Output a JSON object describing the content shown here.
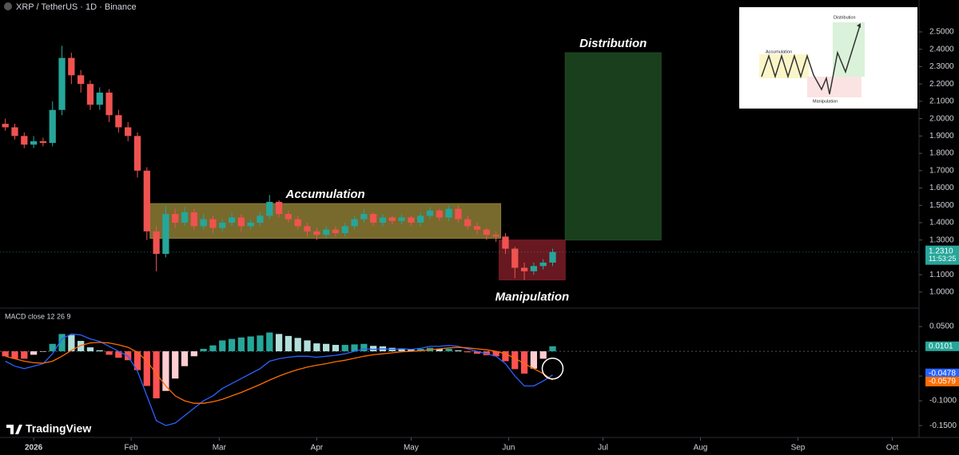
{
  "header": "XRP / TetherUS · 1D · Binance",
  "logo": "TradingView",
  "chart_data": [
    {
      "type": "candlestick",
      "x": [
        -9,
        -6,
        -3,
        0,
        3,
        6,
        9,
        12,
        15,
        18,
        21,
        24,
        27,
        30,
        33,
        36,
        39,
        42,
        45,
        48,
        51,
        54,
        57,
        60,
        63,
        66,
        69,
        72,
        75,
        78,
        81,
        84,
        87,
        90,
        93,
        96,
        99,
        102,
        105,
        108,
        111,
        114,
        117,
        120,
        123,
        126,
        129,
        132,
        135,
        138,
        141,
        144,
        147,
        150,
        153,
        156,
        159,
        162,
        165
      ],
      "open": [
        1.97,
        1.95,
        1.9,
        1.85,
        1.87,
        1.86,
        2.05,
        2.35,
        2.25,
        2.2,
        2.08,
        2.15,
        2.02,
        1.95,
        1.9,
        1.7,
        1.35,
        1.22,
        1.45,
        1.4,
        1.46,
        1.38,
        1.42,
        1.37,
        1.4,
        1.43,
        1.38,
        1.4,
        1.44,
        1.52,
        1.45,
        1.42,
        1.38,
        1.35,
        1.33,
        1.36,
        1.34,
        1.38,
        1.42,
        1.45,
        1.4,
        1.43,
        1.41,
        1.43,
        1.4,
        1.44,
        1.47,
        1.43,
        1.48,
        1.42,
        1.38,
        1.36,
        1.33,
        1.32,
        1.25,
        1.14,
        1.12,
        1.15,
        1.17
      ],
      "high": [
        2.0,
        1.97,
        1.92,
        1.9,
        1.89,
        2.1,
        2.42,
        2.38,
        2.28,
        2.22,
        2.18,
        2.17,
        2.05,
        1.98,
        1.92,
        1.72,
        1.38,
        1.5,
        1.48,
        1.49,
        1.48,
        1.45,
        1.44,
        1.42,
        1.46,
        1.45,
        1.42,
        1.46,
        1.56,
        1.53,
        1.47,
        1.44,
        1.4,
        1.37,
        1.38,
        1.38,
        1.4,
        1.44,
        1.48,
        1.46,
        1.45,
        1.44,
        1.45,
        1.44,
        1.46,
        1.49,
        1.48,
        1.5,
        1.5,
        1.44,
        1.4,
        1.37,
        1.35,
        1.34,
        1.26,
        1.17,
        1.17,
        1.19,
        1.25
      ],
      "low": [
        1.93,
        1.88,
        1.83,
        1.83,
        1.84,
        1.84,
        2.02,
        2.2,
        2.15,
        2.05,
        2.05,
        1.98,
        1.92,
        1.87,
        1.66,
        1.3,
        1.12,
        1.2,
        1.37,
        1.38,
        1.36,
        1.36,
        1.34,
        1.35,
        1.38,
        1.35,
        1.36,
        1.38,
        1.42,
        1.43,
        1.4,
        1.36,
        1.32,
        1.3,
        1.31,
        1.32,
        1.32,
        1.36,
        1.4,
        1.38,
        1.38,
        1.39,
        1.39,
        1.38,
        1.38,
        1.42,
        1.41,
        1.41,
        1.4,
        1.36,
        1.33,
        1.3,
        1.29,
        1.22,
        1.08,
        1.07,
        1.1,
        1.13,
        1.15
      ],
      "close": [
        1.95,
        1.9,
        1.85,
        1.87,
        1.86,
        2.05,
        2.35,
        2.25,
        2.2,
        2.08,
        2.15,
        2.02,
        1.95,
        1.9,
        1.7,
        1.35,
        1.22,
        1.45,
        1.4,
        1.46,
        1.38,
        1.42,
        1.37,
        1.4,
        1.43,
        1.38,
        1.4,
        1.44,
        1.52,
        1.45,
        1.42,
        1.38,
        1.35,
        1.33,
        1.36,
        1.34,
        1.38,
        1.42,
        1.45,
        1.4,
        1.43,
        1.41,
        1.43,
        1.4,
        1.44,
        1.47,
        1.43,
        1.48,
        1.42,
        1.38,
        1.36,
        1.33,
        1.32,
        1.25,
        1.14,
        1.12,
        1.15,
        1.17,
        1.231
      ],
      "up_color": "#26a69a",
      "down_color": "#ef5350",
      "xlim": [
        -10.7,
        281.5
      ],
      "xticks": [
        {
          "value": 0,
          "label": "2026"
        },
        {
          "value": 31,
          "label": "Feb"
        },
        {
          "value": 59,
          "label": "Mar"
        },
        {
          "value": 90,
          "label": "Apr"
        },
        {
          "value": 120,
          "label": "May"
        },
        {
          "value": 151,
          "label": "Jun"
        },
        {
          "value": 181,
          "label": "Jul"
        },
        {
          "value": 212,
          "label": "Aug"
        },
        {
          "value": 243,
          "label": "Sep"
        },
        {
          "value": 273,
          "label": "Oct"
        }
      ],
      "ylim": [
        0.912,
        2.684
      ],
      "yticks": [
        {
          "value": 1.0,
          "label": "1.0000"
        },
        {
          "value": 1.1,
          "label": "1.1000"
        },
        {
          "value": 1.3,
          "label": "1.3000"
        },
        {
          "value": 1.4,
          "label": "1.4000"
        },
        {
          "value": 1.5,
          "label": "1.5000"
        },
        {
          "value": 1.6,
          "label": "1.6000"
        },
        {
          "value": 1.7,
          "label": "1.7000"
        },
        {
          "value": 1.8,
          "label": "1.8000"
        },
        {
          "value": 1.9,
          "label": "1.9000"
        },
        {
          "value": 2.0,
          "label": "2.0000"
        },
        {
          "value": 2.1,
          "label": "2.1000"
        },
        {
          "value": 2.2,
          "label": "2.2000"
        },
        {
          "value": 2.3,
          "label": "2.3000"
        },
        {
          "value": 2.4,
          "label": "2.4000"
        },
        {
          "value": 2.5,
          "label": "2.5000"
        }
      ],
      "last_price": {
        "value": 1.231,
        "label": "1.2310"
      },
      "countdown": "11:53:25",
      "zones": [
        {
          "label": "Accumulation",
          "x": [
            37,
            148.5
          ],
          "y": [
            1.31,
            1.51
          ],
          "color": "#8c7d34"
        },
        {
          "label": "Manipulation",
          "x": [
            148,
            169
          ],
          "y": [
            1.07,
            1.3
          ],
          "color": "#7a1c26"
        },
        {
          "label": "Distribution",
          "x": [
            169,
            199.5
          ],
          "y": [
            1.3,
            2.38
          ],
          "color": "#1f4a22"
        }
      ]
    },
    {
      "type": "macd",
      "title": "MACD close 12 26 9",
      "x": [
        -9,
        -6,
        -3,
        0,
        3,
        6,
        9,
        12,
        15,
        18,
        21,
        24,
        27,
        30,
        33,
        36,
        39,
        42,
        45,
        48,
        51,
        54,
        57,
        60,
        63,
        66,
        69,
        72,
        75,
        78,
        81,
        84,
        87,
        90,
        93,
        96,
        99,
        102,
        105,
        108,
        111,
        114,
        117,
        120,
        123,
        126,
        129,
        132,
        135,
        138,
        141,
        144,
        147,
        150,
        153,
        156,
        159,
        162,
        165
      ],
      "histogram": [
        -0.01,
        -0.015,
        -0.015,
        -0.007,
        -0.001,
        0.015,
        0.035,
        0.033,
        0.021,
        0.008,
        0.002,
        -0.007,
        -0.013,
        -0.018,
        -0.038,
        -0.07,
        -0.095,
        -0.08,
        -0.055,
        -0.03,
        -0.01,
        0.005,
        0.012,
        0.022,
        0.025,
        0.028,
        0.03,
        0.032,
        0.038,
        0.035,
        0.031,
        0.027,
        0.022,
        0.016,
        0.015,
        0.013,
        0.013,
        0.014,
        0.015,
        0.011,
        0.01,
        0.007,
        0.006,
        0.004,
        0.005,
        0.007,
        0.005,
        0.005,
        0.002,
        -0.002,
        -0.005,
        -0.008,
        -0.01,
        -0.02,
        -0.036,
        -0.045,
        -0.035,
        -0.015,
        0.0101
      ],
      "series": [
        {
          "name": "MACD",
          "color": "#2962ff",
          "values": [
            -0.02,
            -0.03,
            -0.035,
            -0.03,
            -0.025,
            -0.005,
            0.025,
            0.035,
            0.033,
            0.025,
            0.02,
            0.01,
            0.0,
            -0.01,
            -0.04,
            -0.09,
            -0.14,
            -0.15,
            -0.145,
            -0.13,
            -0.115,
            -0.1,
            -0.09,
            -0.075,
            -0.065,
            -0.055,
            -0.045,
            -0.035,
            -0.02,
            -0.015,
            -0.012,
            -0.01,
            -0.01,
            -0.012,
            -0.01,
            -0.008,
            -0.005,
            0.0,
            0.005,
            0.004,
            0.005,
            0.004,
            0.005,
            0.004,
            0.006,
            0.01,
            0.01,
            0.012,
            0.01,
            0.005,
            0.0,
            -0.005,
            -0.01,
            -0.025,
            -0.05,
            -0.07,
            -0.07,
            -0.06,
            -0.0478
          ]
        },
        {
          "name": "Signal",
          "color": "#ff6d00",
          "values": [
            -0.01,
            -0.015,
            -0.02,
            -0.023,
            -0.024,
            -0.02,
            -0.01,
            0.002,
            0.012,
            0.017,
            0.018,
            0.017,
            0.013,
            0.008,
            -0.002,
            -0.02,
            -0.045,
            -0.07,
            -0.09,
            -0.1,
            -0.105,
            -0.105,
            -0.102,
            -0.097,
            -0.09,
            -0.083,
            -0.075,
            -0.067,
            -0.058,
            -0.05,
            -0.043,
            -0.037,
            -0.032,
            -0.028,
            -0.025,
            -0.021,
            -0.018,
            -0.014,
            -0.01,
            -0.007,
            -0.005,
            -0.003,
            -0.001,
            0.0,
            0.001,
            0.003,
            0.005,
            0.007,
            0.008,
            0.007,
            0.005,
            0.003,
            0.0,
            -0.005,
            -0.014,
            -0.025,
            -0.035,
            -0.045,
            -0.0579
          ]
        }
      ],
      "badges": [
        {
          "value": 0.0101,
          "label": "0.0101"
        },
        {
          "value": -0.0478,
          "label": "-0.0478"
        },
        {
          "value": -0.0579,
          "label": "-0.0579"
        }
      ],
      "ylim": [
        -0.174,
        0.084
      ],
      "yticks": [
        {
          "value": 0.05,
          "label": "0.0500"
        },
        {
          "value": -0.05,
          "label": "-0.0500"
        },
        {
          "value": -0.1,
          "label": "-0.1000"
        },
        {
          "value": -0.15,
          "label": "-0.1500"
        }
      ]
    }
  ],
  "inset": {
    "labels": [
      "Accumulation",
      "Manipulation",
      "Distribution"
    ]
  }
}
